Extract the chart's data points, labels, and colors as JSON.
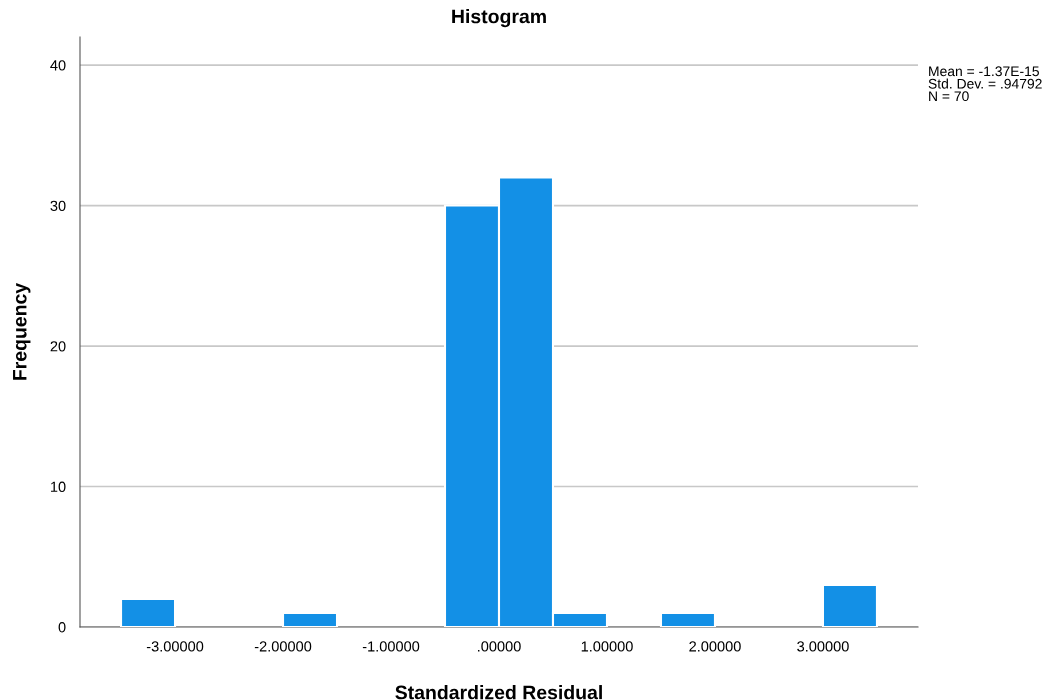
{
  "chart_data": {
    "type": "histogram",
    "title": "Histogram",
    "xlabel": "Standardized Residual",
    "ylabel": "Frequency",
    "bins": [
      -3.5,
      -3.0,
      -2.5,
      -2.0,
      -1.5,
      -1.0,
      -0.5,
      0.0,
      0.5,
      1.0,
      1.5,
      2.0,
      2.5,
      3.0,
      3.5
    ],
    "values": [
      2,
      0,
      0,
      1,
      0,
      0,
      30,
      32,
      1,
      0,
      1,
      0,
      0,
      3
    ],
    "color": "#1390e6",
    "xlim": [
      -3.88,
      3.88
    ],
    "xticks": [
      {
        "value": -3,
        "label": "-3.00000"
      },
      {
        "value": -2,
        "label": "-2.00000"
      },
      {
        "value": -1,
        "label": "-1.00000"
      },
      {
        "value": 0,
        "label": ".00000"
      },
      {
        "value": 1,
        "label": "1.00000"
      },
      {
        "value": 2,
        "label": "2.00000"
      },
      {
        "value": 3,
        "label": "3.00000"
      }
    ],
    "ylim": [
      0,
      42
    ],
    "yticks": [
      0,
      10,
      20,
      30,
      40
    ],
    "grid": "y",
    "annotations": [
      "Mean = -1.37E-15\nStd. Dev. = .94792\nN = 70"
    ]
  }
}
